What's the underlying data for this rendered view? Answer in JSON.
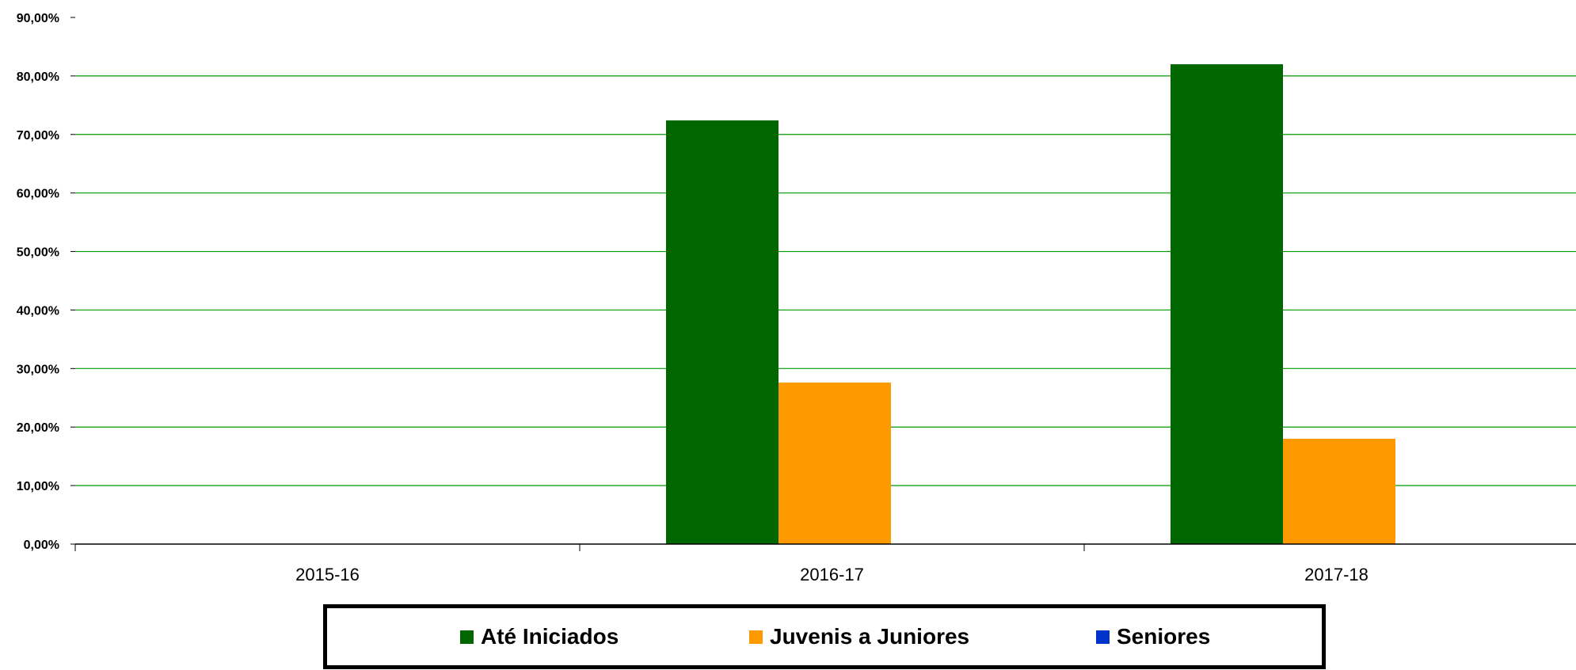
{
  "chart_data": {
    "type": "bar",
    "categories": [
      "2015-16",
      "2016-17",
      "2017-18"
    ],
    "series": [
      {
        "name": "Até Iniciados",
        "color": "#006600",
        "values": [
          0,
          72.4,
          82.0
        ]
      },
      {
        "name": "Juvenis a Juniores",
        "color": "#FF9900",
        "values": [
          0,
          27.6,
          18.0
        ]
      },
      {
        "name": "Seniores",
        "color": "#0033CC",
        "values": [
          0,
          0,
          0
        ]
      }
    ],
    "y_ticks": [
      "0,00%",
      "10,00%",
      "20,00%",
      "30,00%",
      "40,00%",
      "50,00%",
      "60,00%",
      "70,00%",
      "80,00%",
      "90,00%"
    ],
    "ylim": [
      0,
      90
    ],
    "title": "",
    "xlabel": "",
    "ylabel": "",
    "grid": true,
    "grid_color": "#009900",
    "legend_position": "bottom"
  }
}
